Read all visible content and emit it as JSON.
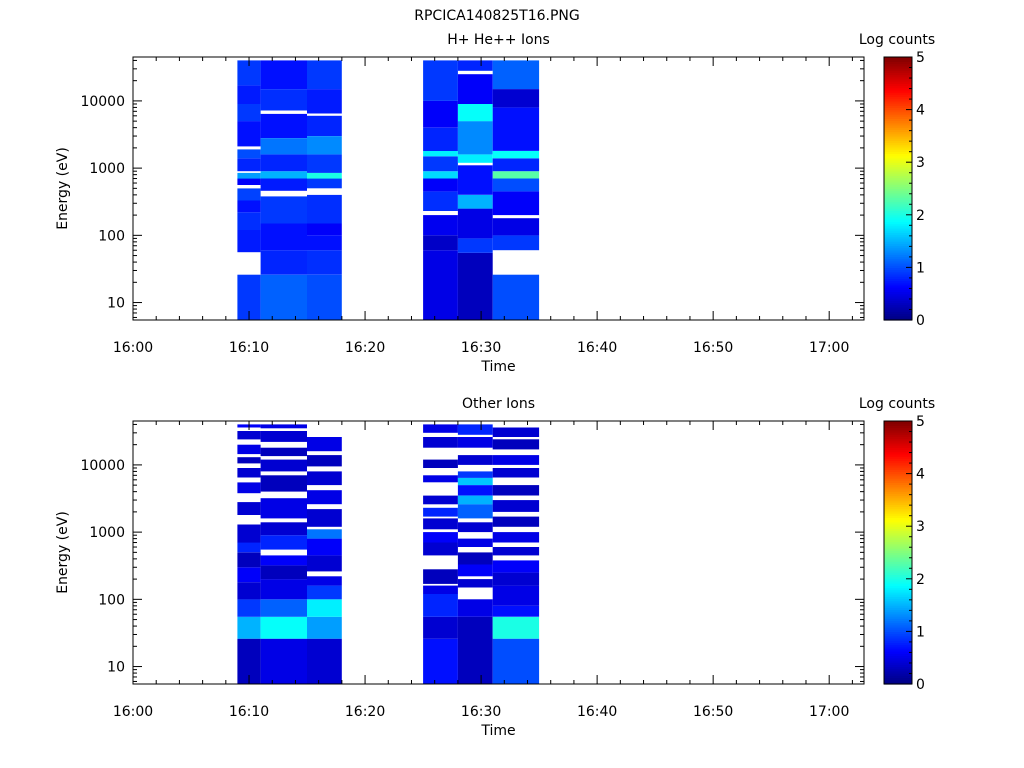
{
  "figure": {
    "title": "RPCICA140825T16.PNG"
  },
  "chart_data": [
    {
      "type": "heatmap",
      "title": "H+ He++ Ions",
      "xlabel": "Time",
      "ylabel": "Energy (eV)",
      "y_scale": "log",
      "ylim": [
        5.5,
        45000
      ],
      "xlim": [
        "16:00",
        "17:03"
      ],
      "x_ticks": [
        "16:00",
        "16:10",
        "16:20",
        "16:30",
        "16:40",
        "16:50",
        "17:00"
      ],
      "y_ticks": [
        "10",
        "100",
        "1000",
        "10000"
      ],
      "colorbar": {
        "label": "Log counts",
        "ticks": [
          "0",
          "1",
          "2",
          "3",
          "4",
          "5"
        ],
        "range": [
          0,
          5
        ],
        "colormap": "jet"
      },
      "time_bins": [
        [
          "16:09",
          "16:11"
        ],
        [
          "16:11",
          "16:15"
        ],
        [
          "16:15",
          "16:18"
        ],
        [
          "16:25",
          "16:28"
        ],
        [
          "16:28",
          "16:31"
        ],
        [
          "16:31",
          "16:35"
        ]
      ],
      "cells": [
        [
          [
            5.5,
            26,
            0.9
          ],
          [
            56,
            120,
            0.75
          ],
          [
            120,
            220,
            0.85
          ],
          [
            220,
            330,
            0.7
          ],
          [
            330,
            500,
            0.95
          ],
          [
            560,
            700,
            0.6
          ],
          [
            700,
            850,
            1.4
          ],
          [
            900,
            1400,
            0.8
          ],
          [
            1400,
            1900,
            1.0
          ],
          [
            2100,
            5000,
            0.7
          ],
          [
            5000,
            9000,
            0.9
          ],
          [
            9000,
            17000,
            0.75
          ],
          [
            17000,
            40000,
            0.9
          ]
        ],
        [
          [
            5.5,
            26,
            1.1
          ],
          [
            26,
            60,
            0.8
          ],
          [
            60,
            150,
            0.7
          ],
          [
            150,
            380,
            0.9
          ],
          [
            460,
            700,
            0.75
          ],
          [
            700,
            900,
            1.5
          ],
          [
            900,
            1600,
            0.8
          ],
          [
            1600,
            2800,
            1.2
          ],
          [
            2800,
            6400,
            0.7
          ],
          [
            7200,
            15000,
            0.85
          ],
          [
            15000,
            40000,
            0.7
          ]
        ],
        [
          [
            5.5,
            26,
            1.0
          ],
          [
            26,
            60,
            0.85
          ],
          [
            60,
            100,
            0.7
          ],
          [
            100,
            150,
            0.6
          ],
          [
            150,
            400,
            0.85
          ],
          [
            500,
            700,
            0.9
          ],
          [
            700,
            850,
            2.0
          ],
          [
            850,
            1600,
            0.9
          ],
          [
            1600,
            3000,
            1.3
          ],
          [
            3000,
            6000,
            0.8
          ],
          [
            6500,
            15000,
            0.75
          ],
          [
            15000,
            40000,
            0.9
          ]
        ],
        [
          [
            5.5,
            60,
            0.5
          ],
          [
            60,
            100,
            0.35
          ],
          [
            100,
            200,
            0.55
          ],
          [
            230,
            450,
            0.85
          ],
          [
            450,
            700,
            0.6
          ],
          [
            700,
            900,
            1.7
          ],
          [
            900,
            1500,
            0.9
          ],
          [
            1500,
            1800,
            1.8
          ],
          [
            1800,
            4000,
            0.8
          ],
          [
            4000,
            10000,
            0.6
          ],
          [
            10000,
            40000,
            0.9
          ]
        ],
        [
          [
            5.5,
            55,
            0.3
          ],
          [
            55,
            90,
            0.9
          ],
          [
            90,
            250,
            0.5
          ],
          [
            250,
            400,
            1.5
          ],
          [
            400,
            1100,
            0.7
          ],
          [
            1200,
            1600,
            1.8
          ],
          [
            1600,
            5000,
            1.3
          ],
          [
            5000,
            9000,
            1.9
          ],
          [
            9000,
            25000,
            0.6
          ],
          [
            28000,
            40000,
            0.8
          ]
        ],
        [
          [
            5.5,
            26,
            1.0
          ],
          [
            60,
            100,
            0.9
          ],
          [
            100,
            180,
            0.5
          ],
          [
            200,
            450,
            0.6
          ],
          [
            450,
            700,
            1.0
          ],
          [
            700,
            900,
            2.3
          ],
          [
            900,
            1400,
            0.8
          ],
          [
            1400,
            1800,
            1.9
          ],
          [
            1800,
            8000,
            0.7
          ],
          [
            8000,
            15000,
            0.4
          ],
          [
            15000,
            40000,
            1.1
          ]
        ]
      ]
    },
    {
      "type": "heatmap",
      "title": "Other Ions",
      "xlabel": "Time",
      "ylabel": "Energy (eV)",
      "y_scale": "log",
      "ylim": [
        5.5,
        45000
      ],
      "xlim": [
        "16:00",
        "17:03"
      ],
      "x_ticks": [
        "16:00",
        "16:10",
        "16:20",
        "16:30",
        "16:40",
        "16:50",
        "17:00"
      ],
      "y_ticks": [
        "10",
        "100",
        "1000",
        "10000"
      ],
      "colorbar": {
        "label": "Log counts",
        "ticks": [
          "0",
          "1",
          "2",
          "3",
          "4",
          "5"
        ],
        "range": [
          0,
          5
        ],
        "colormap": "jet"
      },
      "time_bins": [
        [
          "16:09",
          "16:11"
        ],
        [
          "16:11",
          "16:15"
        ],
        [
          "16:15",
          "16:18"
        ],
        [
          "16:25",
          "16:28"
        ],
        [
          "16:28",
          "16:31"
        ],
        [
          "16:31",
          "16:35"
        ]
      ],
      "cells": [
        [
          [
            5.5,
            26,
            0.3
          ],
          [
            26,
            55,
            1.5
          ],
          [
            55,
            100,
            0.9
          ],
          [
            100,
            180,
            0.4
          ],
          [
            180,
            300,
            0.6
          ],
          [
            300,
            500,
            0.3
          ],
          [
            500,
            700,
            0.8
          ],
          [
            700,
            1300,
            0.4
          ],
          [
            1800,
            2800,
            0.4
          ],
          [
            3800,
            5500,
            0.5
          ],
          [
            6500,
            9000,
            0.4
          ],
          [
            10500,
            13000,
            0.3
          ],
          [
            14500,
            20000,
            0.5
          ],
          [
            24000,
            32000,
            0.4
          ],
          [
            36000,
            40000,
            0.6
          ]
        ],
        [
          [
            5.5,
            26,
            0.5
          ],
          [
            26,
            55,
            1.9
          ],
          [
            55,
            100,
            1.1
          ],
          [
            100,
            200,
            0.5
          ],
          [
            200,
            320,
            0.3
          ],
          [
            320,
            450,
            0.6
          ],
          [
            550,
            900,
            0.8
          ],
          [
            900,
            1400,
            0.4
          ],
          [
            1600,
            3200,
            0.5
          ],
          [
            4000,
            7000,
            0.3
          ],
          [
            8000,
            12000,
            0.4
          ],
          [
            13500,
            18000,
            0.3
          ],
          [
            22000,
            32000,
            0.4
          ],
          [
            35000,
            40000,
            0.5
          ]
        ],
        [
          [
            5.5,
            26,
            0.4
          ],
          [
            26,
            55,
            1.4
          ],
          [
            55,
            100,
            1.8
          ],
          [
            100,
            160,
            0.9
          ],
          [
            160,
            220,
            0.5
          ],
          [
            260,
            450,
            0.4
          ],
          [
            450,
            800,
            0.6
          ],
          [
            800,
            1100,
            1.2
          ],
          [
            1200,
            2200,
            0.4
          ],
          [
            2600,
            4200,
            0.5
          ],
          [
            5000,
            8000,
            0.4
          ],
          [
            9500,
            14000,
            0.3
          ],
          [
            16000,
            26000,
            0.5
          ]
        ],
        [
          [
            5.5,
            26,
            0.7
          ],
          [
            26,
            55,
            0.4
          ],
          [
            55,
            120,
            0.8
          ],
          [
            120,
            160,
            0.5
          ],
          [
            170,
            280,
            0.3
          ],
          [
            450,
            700,
            0.4
          ],
          [
            700,
            1000,
            0.6
          ],
          [
            1100,
            1600,
            0.4
          ],
          [
            1700,
            2300,
            0.8
          ],
          [
            2600,
            3500,
            0.4
          ],
          [
            5500,
            7000,
            0.5
          ],
          [
            9000,
            12000,
            0.3
          ],
          [
            18000,
            26000,
            0.4
          ],
          [
            30000,
            40000,
            0.5
          ]
        ],
        [
          [
            5.5,
            55,
            0.3
          ],
          [
            55,
            100,
            0.5
          ],
          [
            150,
            200,
            0.4
          ],
          [
            220,
            330,
            0.6
          ],
          [
            330,
            500,
            0.3
          ],
          [
            600,
            800,
            0.5
          ],
          [
            1000,
            1400,
            0.4
          ],
          [
            1600,
            2600,
            1.1
          ],
          [
            2600,
            3500,
            1.5
          ],
          [
            3500,
            5000,
            0.7
          ],
          [
            5000,
            6400,
            1.6
          ],
          [
            6400,
            8000,
            0.9
          ],
          [
            10000,
            14000,
            0.4
          ],
          [
            18000,
            26000,
            0.5
          ],
          [
            28000,
            40000,
            0.8
          ]
        ],
        [
          [
            5.5,
            26,
            1.0
          ],
          [
            26,
            55,
            2.0
          ],
          [
            55,
            80,
            0.7
          ],
          [
            80,
            160,
            0.5
          ],
          [
            160,
            250,
            0.4
          ],
          [
            250,
            380,
            0.6
          ],
          [
            450,
            600,
            0.4
          ],
          [
            700,
            1000,
            0.5
          ],
          [
            1200,
            1700,
            0.3
          ],
          [
            2000,
            3000,
            0.4
          ],
          [
            3500,
            5000,
            0.3
          ],
          [
            6500,
            9000,
            0.4
          ],
          [
            10000,
            14000,
            0.5
          ],
          [
            17000,
            24000,
            0.3
          ],
          [
            26000,
            36000,
            0.4
          ]
        ]
      ]
    }
  ]
}
